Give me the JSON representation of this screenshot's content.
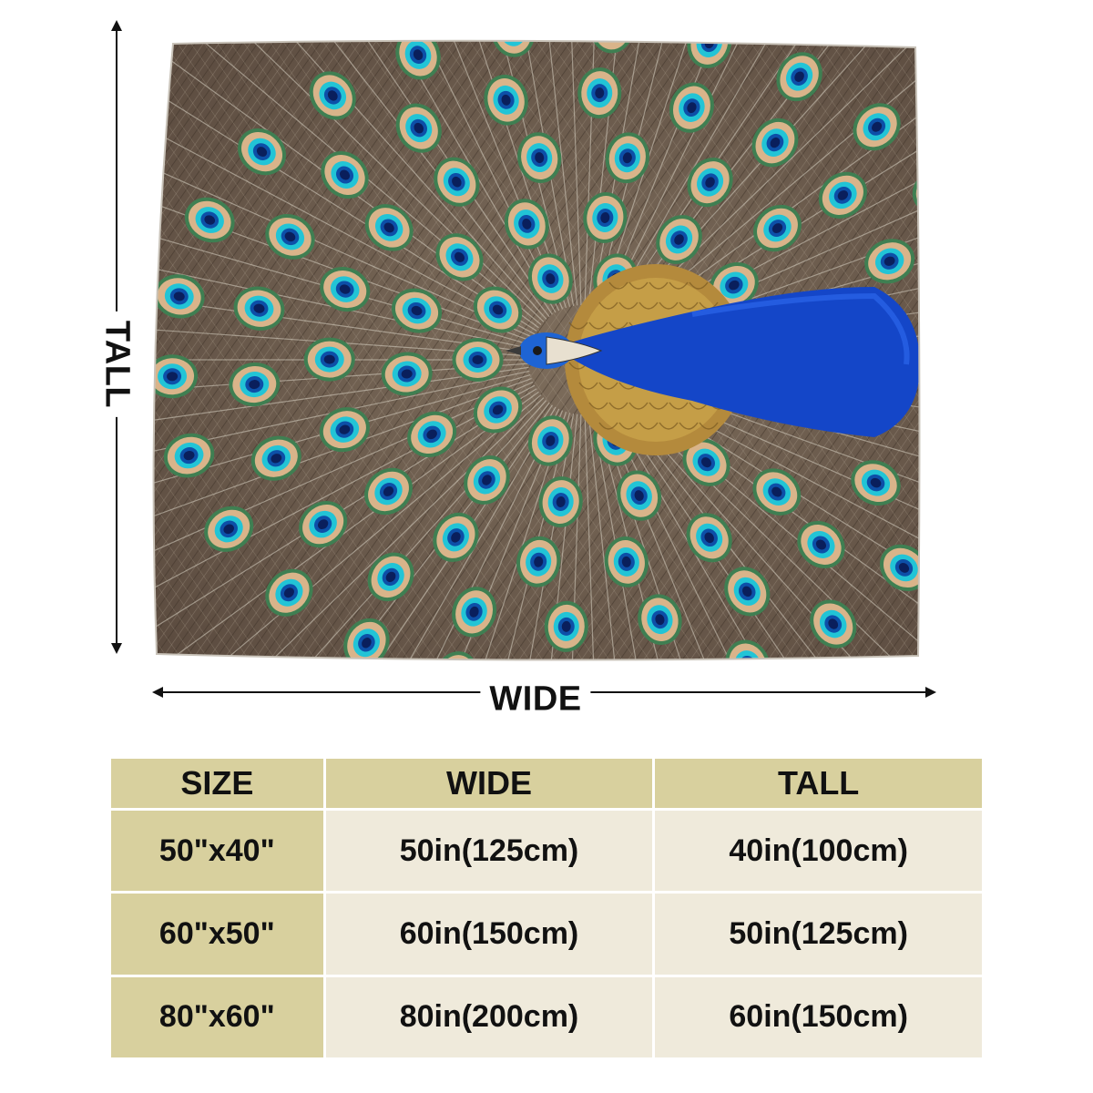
{
  "labels": {
    "tall": "TALL",
    "wide": "WIDE"
  },
  "product": {
    "image": "peacock-feather-blanket",
    "colors": {
      "feather_brown": "#6b5a4c",
      "eye_teal": "#22c4d6",
      "body_blue": "#1446c8",
      "scale_gold": "#c9a24a"
    }
  },
  "table": {
    "headers": [
      "SIZE",
      "WIDE",
      "TALL"
    ],
    "rows": [
      {
        "size": "50\"x40\"",
        "wide": "50in(125cm)",
        "tall": "40in(100cm)"
      },
      {
        "size": "60\"x50\"",
        "wide": "60in(150cm)",
        "tall": "50in(125cm)"
      },
      {
        "size": "80\"x60\"",
        "wide": "80in(200cm)",
        "tall": "60in(150cm)"
      }
    ],
    "colors": {
      "header_bg": "#d8d09e",
      "cell_bg": "#efeadb"
    }
  }
}
